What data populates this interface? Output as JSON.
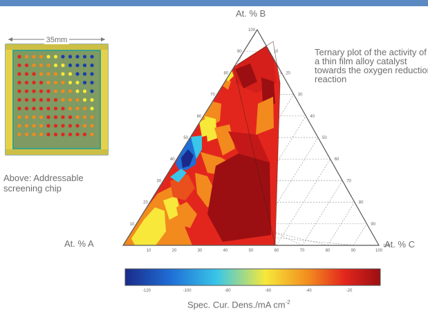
{
  "header": {
    "accent_color": "#5b89c2"
  },
  "captions": {
    "plot": "Ternary plot of the activity of a thin film alloy catalyst towards the oxygen reduction reaction",
    "chip": "Above: Addressable screening chip",
    "chip_dimension": "35mm"
  },
  "chart_data": {
    "type": "heatmap",
    "subtype": "ternary",
    "axes": {
      "top": "At. % B",
      "left": "At. % A",
      "right": "At. % C"
    },
    "tick_values": [
      "10",
      "20",
      "30",
      "40",
      "50",
      "60",
      "70",
      "80",
      "90",
      "100"
    ],
    "grid": true,
    "colorbar": {
      "label": "Spec. Cur. Dens./mA cm",
      "label_superscript": "-2",
      "ticks": [
        "-120",
        "-100",
        "-80",
        "-60",
        "-40",
        "-20"
      ],
      "colors": [
        "#1a2a8a",
        "#1f6fd6",
        "#39c6e8",
        "#f7e83a",
        "#f28a1e",
        "#e3261d",
        "#9b0f12"
      ]
    }
  }
}
